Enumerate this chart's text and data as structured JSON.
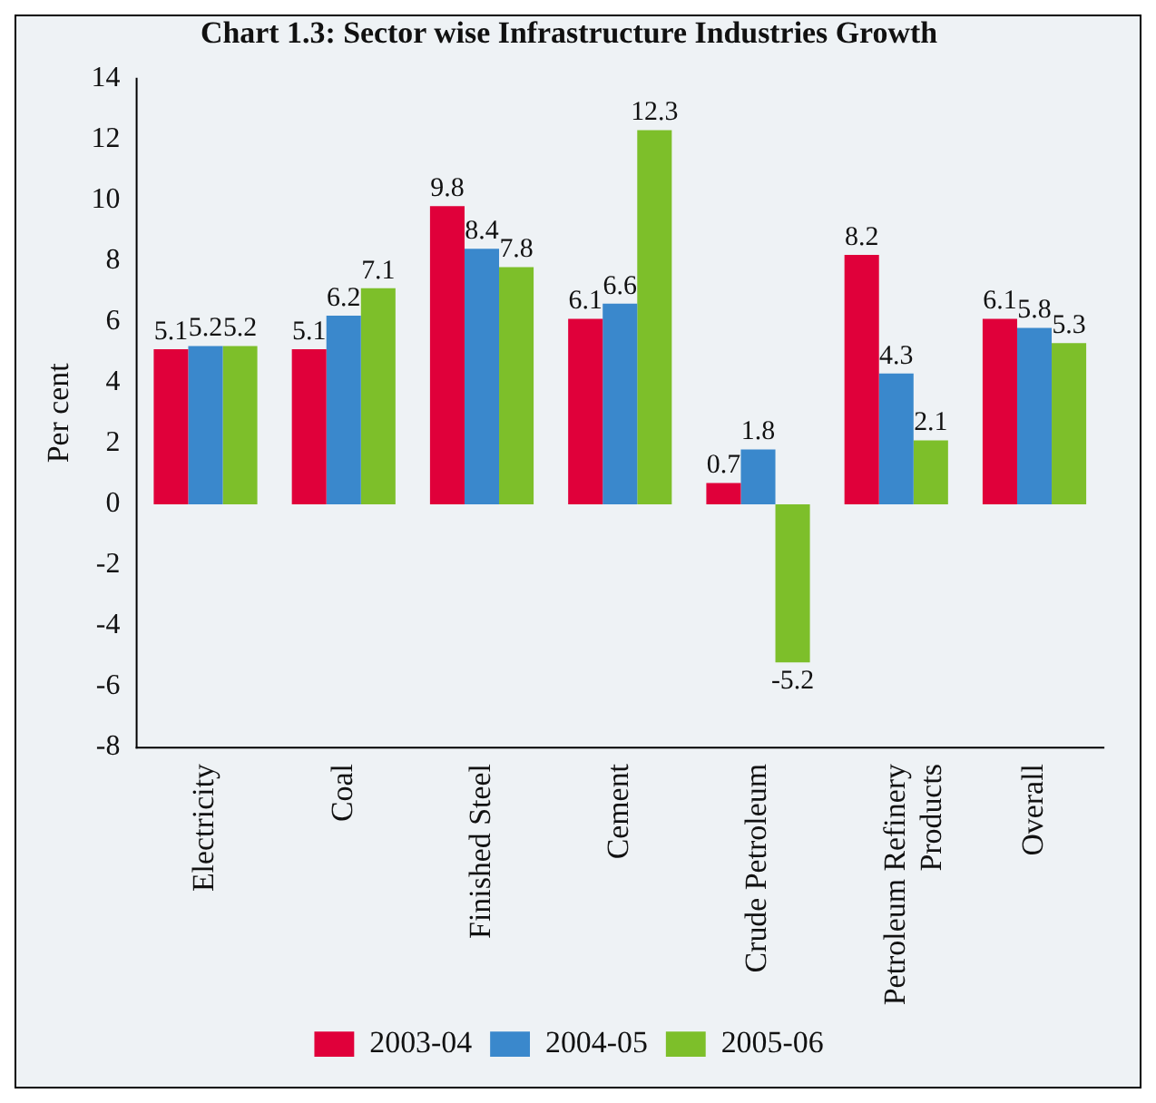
{
  "chart_data": {
    "type": "bar",
    "title": "Chart 1.3: Sector wise Infrastructure Industries Growth",
    "ylabel": "Per cent",
    "categories": [
      "Electricity",
      "Coal",
      "Finished Steel",
      "Cement",
      "Crude Petroleum",
      "Petroleum Refinery Products",
      "Overall"
    ],
    "series": [
      {
        "name": "2003-04",
        "color": "#e0003a",
        "values": [
          5.1,
          5.1,
          9.8,
          6.1,
          0.7,
          8.2,
          6.1
        ]
      },
      {
        "name": "2004-05",
        "color": "#3a88cc",
        "values": [
          5.2,
          6.2,
          8.4,
          6.6,
          1.8,
          4.3,
          5.8
        ]
      },
      {
        "name": "2005-06",
        "color": "#7dbf2a",
        "values": [
          5.2,
          7.1,
          7.8,
          12.3,
          -5.2,
          2.1,
          5.3
        ]
      }
    ],
    "ylim": [
      -8,
      14
    ],
    "yticks": [
      -8,
      -6,
      -4,
      -2,
      0,
      2,
      4,
      6,
      8,
      10,
      12,
      14
    ],
    "grid": false,
    "legend": "bottom",
    "data_labels": true
  }
}
